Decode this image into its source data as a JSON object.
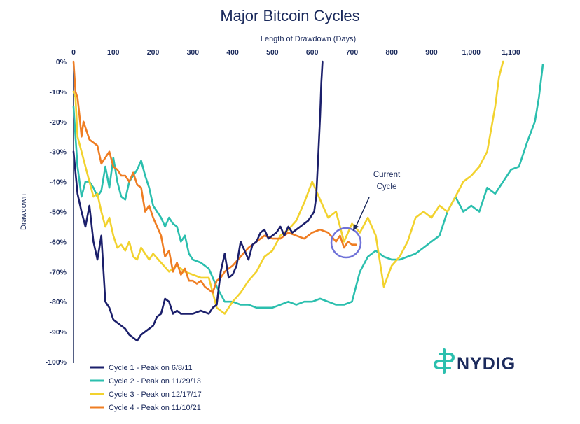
{
  "chart_data": {
    "type": "line",
    "title": "Major Bitcoin Cycles",
    "xlabel": "Length of Drawdown (Days)",
    "ylabel": "Drawdown",
    "xlim": [
      0,
      1180
    ],
    "ylim": [
      -100,
      0
    ],
    "x_axis_position": "top",
    "x_ticks": [
      0,
      100,
      200,
      300,
      400,
      500,
      600,
      700,
      800,
      900,
      1000,
      1100
    ],
    "x_tick_labels": [
      "0",
      "100",
      "200",
      "300",
      "400",
      "500",
      "600",
      "700",
      "800",
      "900",
      "1,000",
      "1,100"
    ],
    "y_ticks": [
      0,
      -10,
      -20,
      -30,
      -40,
      -50,
      -60,
      -70,
      -80,
      -90,
      -100
    ],
    "y_tick_labels": [
      "0%",
      "-10%",
      "-20%",
      "-30%",
      "-40%",
      "-50%",
      "-60%",
      "-70%",
      "-80%",
      "-90%",
      "-100%"
    ],
    "grid": false,
    "legend_position": "bottom-left",
    "series": [
      {
        "name": "Cycle 1 - Peak on 6/8/11",
        "color": "#1b1f6b",
        "x": [
          0,
          10,
          20,
          30,
          40,
          50,
          60,
          70,
          80,
          90,
          100,
          110,
          120,
          130,
          140,
          150,
          160,
          170,
          180,
          190,
          200,
          210,
          220,
          230,
          240,
          250,
          260,
          270,
          280,
          300,
          320,
          340,
          350,
          360,
          370,
          380,
          390,
          400,
          410,
          420,
          430,
          440,
          450,
          460,
          470,
          480,
          490,
          500,
          510,
          520,
          530,
          540,
          550,
          560,
          570,
          580,
          590,
          600,
          605,
          610,
          615,
          620,
          623,
          626
        ],
        "y": [
          -30,
          -44,
          -50,
          -55,
          -48,
          -60,
          -66,
          -58,
          -80,
          -82,
          -86,
          -87,
          -88,
          -89,
          -91,
          -92,
          -93,
          -91,
          -90,
          -89,
          -88,
          -85,
          -84,
          -79,
          -80,
          -84,
          -83,
          -84,
          -84,
          -84,
          -83,
          -84,
          -82,
          -81,
          -70,
          -64,
          -72,
          -71,
          -68,
          -60,
          -63,
          -66,
          -61,
          -60,
          -57,
          -56,
          -59,
          -58,
          -57,
          -55,
          -58,
          -55,
          -57,
          -56,
          -55,
          -54,
          -53,
          -51,
          -50,
          -45,
          -32,
          -18,
          -7,
          0
        ]
      },
      {
        "name": "Cycle 2 - Peak on 11/29/13",
        "color": "#2bbfae",
        "x": [
          0,
          5,
          10,
          20,
          30,
          40,
          50,
          60,
          70,
          80,
          90,
          100,
          110,
          120,
          130,
          140,
          150,
          160,
          170,
          180,
          190,
          200,
          210,
          220,
          230,
          240,
          250,
          260,
          270,
          280,
          290,
          300,
          320,
          340,
          360,
          380,
          400,
          420,
          440,
          460,
          480,
          500,
          520,
          540,
          560,
          580,
          600,
          620,
          640,
          660,
          680,
          700,
          720,
          740,
          760,
          780,
          800,
          820,
          840,
          860,
          880,
          900,
          920,
          940,
          960,
          980,
          1000,
          1020,
          1040,
          1060,
          1080,
          1100,
          1120,
          1140,
          1160,
          1170,
          1180
        ],
        "y": [
          -15,
          -25,
          -35,
          -45,
          -40,
          -40,
          -42,
          -45,
          -43,
          -35,
          -42,
          -32,
          -40,
          -45,
          -46,
          -40,
          -38,
          -36,
          -33,
          -38,
          -42,
          -48,
          -50,
          -52,
          -55,
          -52,
          -54,
          -55,
          -60,
          -58,
          -64,
          -66,
          -67,
          -69,
          -75,
          -80,
          -80,
          -81,
          -81,
          -82,
          -82,
          -82,
          -81,
          -80,
          -81,
          -80,
          -80,
          -79,
          -80,
          -81,
          -81,
          -80,
          -70,
          -65,
          -63,
          -65,
          -66,
          -66,
          -65,
          -64,
          -62,
          -60,
          -58,
          -50,
          -45,
          -50,
          -48,
          -50,
          -42,
          -44,
          -40,
          -36,
          -35,
          -27,
          -20,
          -12,
          -1
        ]
      },
      {
        "name": "Cycle 3 - Peak on 12/17/17",
        "color": "#f2d22e",
        "x": [
          0,
          5,
          10,
          20,
          30,
          40,
          50,
          60,
          70,
          80,
          90,
          100,
          110,
          120,
          130,
          140,
          150,
          160,
          170,
          180,
          190,
          200,
          220,
          240,
          260,
          280,
          300,
          320,
          340,
          360,
          380,
          400,
          420,
          440,
          460,
          480,
          500,
          520,
          540,
          560,
          580,
          600,
          620,
          640,
          660,
          680,
          700,
          720,
          740,
          760,
          780,
          800,
          820,
          840,
          860,
          880,
          900,
          920,
          940,
          960,
          980,
          1000,
          1020,
          1040,
          1060,
          1070,
          1080
        ],
        "y": [
          -10,
          -12,
          -25,
          -30,
          -35,
          -40,
          -45,
          -44,
          -50,
          -55,
          -52,
          -58,
          -62,
          -61,
          -63,
          -60,
          -65,
          -66,
          -62,
          -64,
          -66,
          -64,
          -67,
          -70,
          -68,
          -70,
          -71,
          -72,
          -72,
          -82,
          -84,
          -80,
          -77,
          -73,
          -70,
          -65,
          -63,
          -58,
          -56,
          -53,
          -47,
          -40,
          -46,
          -52,
          -50,
          -60,
          -54,
          -57,
          -52,
          -58,
          -75,
          -68,
          -65,
          -60,
          -52,
          -50,
          -52,
          -48,
          -50,
          -45,
          -40,
          -38,
          -35,
          -30,
          -15,
          -5,
          0
        ]
      },
      {
        "name": "Cycle 4 - Peak on 11/10/21",
        "color": "#ef7d22",
        "x": [
          0,
          5,
          10,
          15,
          20,
          25,
          30,
          40,
          50,
          60,
          70,
          80,
          90,
          100,
          110,
          120,
          130,
          140,
          150,
          160,
          170,
          180,
          190,
          200,
          210,
          220,
          230,
          240,
          250,
          260,
          270,
          280,
          290,
          300,
          310,
          320,
          330,
          340,
          350,
          360,
          370,
          380,
          390,
          400,
          420,
          440,
          460,
          480,
          500,
          520,
          540,
          560,
          580,
          600,
          620,
          640,
          660,
          670,
          680,
          690,
          700,
          710
        ],
        "y": [
          0,
          -10,
          -12,
          -18,
          -25,
          -20,
          -22,
          -26,
          -27,
          -28,
          -34,
          -32,
          -30,
          -35,
          -36,
          -38,
          -38,
          -40,
          -37,
          -41,
          -42,
          -50,
          -48,
          -52,
          -55,
          -58,
          -65,
          -63,
          -70,
          -67,
          -71,
          -69,
          -73,
          -73,
          -74,
          -73,
          -75,
          -76,
          -77,
          -73,
          -72,
          -70,
          -69,
          -68,
          -65,
          -62,
          -60,
          -58,
          -59,
          -59,
          -57,
          -58,
          -59,
          -57,
          -56,
          -57,
          -60,
          -58,
          -62,
          -60,
          -61,
          -61
        ]
      }
    ],
    "annotations": [
      {
        "text_line1": "Current",
        "text_line2": "Cycle",
        "x": 700,
        "y": -60,
        "shape": "circle-with-arrow"
      }
    ]
  },
  "branding": {
    "logo_text": "NYDIG",
    "logo_color": "#2bbfae"
  }
}
